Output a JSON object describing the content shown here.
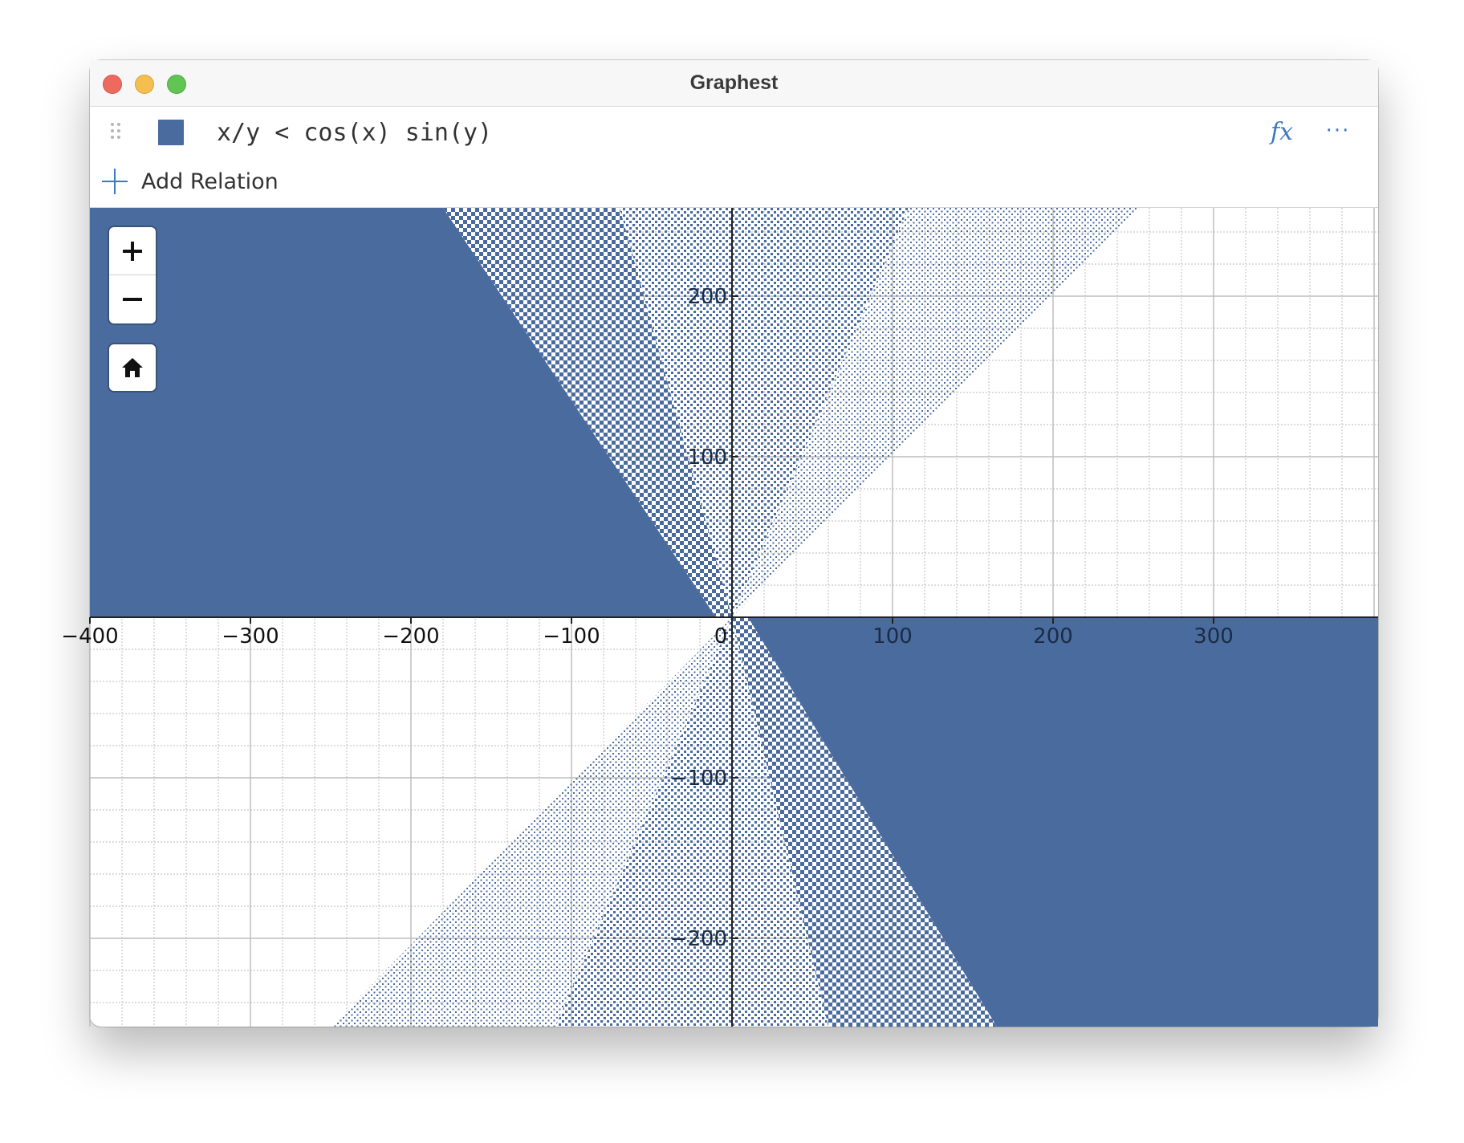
{
  "window": {
    "title": "Graphest"
  },
  "relations": [
    {
      "expression": "x/y < cos(x) sin(y)",
      "color": "#4a6b9e"
    }
  ],
  "toolbar": {
    "fx_label": "fx",
    "more_label": "···",
    "add_relation_label": "Add Relation"
  },
  "icons": {
    "drag": "drag-handle-icon",
    "add": "plus-icon",
    "zoom_in": "plus-icon",
    "zoom_out": "minus-icon",
    "home": "home-icon"
  },
  "chart_data": {
    "type": "implicit-region",
    "relation": "x/y < cos(x) sin(y)",
    "fill_color": "#4a6b9e",
    "xlim": [
      -400,
      400
    ],
    "ylim": [
      -255,
      255
    ],
    "x_ticks": [
      -400,
      -300,
      -200,
      -100,
      0,
      100,
      200,
      300
    ],
    "y_ticks": [
      200,
      100,
      -100,
      -200
    ],
    "x_tick_labels": [
      "−400",
      "−300",
      "−200",
      "−100",
      "0",
      "100",
      "200",
      "300"
    ],
    "y_tick_labels": [
      "200",
      "100",
      "−100",
      "−200"
    ],
    "major_step": 100,
    "minor_step": 20,
    "grid": true
  }
}
